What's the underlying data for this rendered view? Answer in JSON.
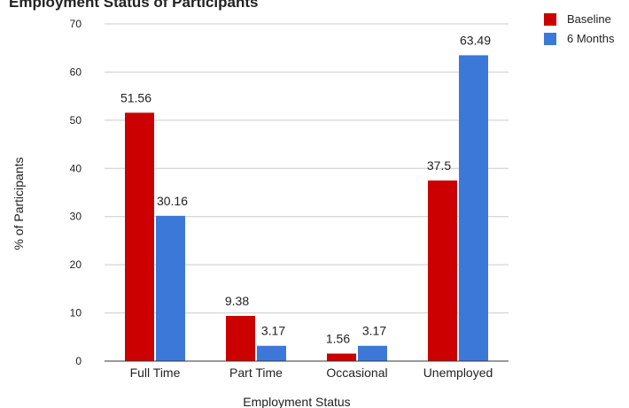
{
  "chart_data": {
    "type": "bar",
    "title": "Employment Status of Participants",
    "xlabel": "Employment Status",
    "ylabel": "% of Participants",
    "categories": [
      "Full Time",
      "Part Time",
      "Occasional",
      "Unemployed"
    ],
    "series": [
      {
        "name": "Baseline",
        "color": "#cc0000",
        "values": [
          51.56,
          9.38,
          1.56,
          37.5
        ]
      },
      {
        "name": "6 Months",
        "color": "#3c78d8",
        "values": [
          30.16,
          3.17,
          3.17,
          63.49
        ]
      }
    ],
    "ylim": [
      0,
      70
    ],
    "yticks": [
      0,
      10,
      20,
      30,
      40,
      50,
      60,
      70
    ],
    "grid": true,
    "legend_position": "top-right"
  }
}
